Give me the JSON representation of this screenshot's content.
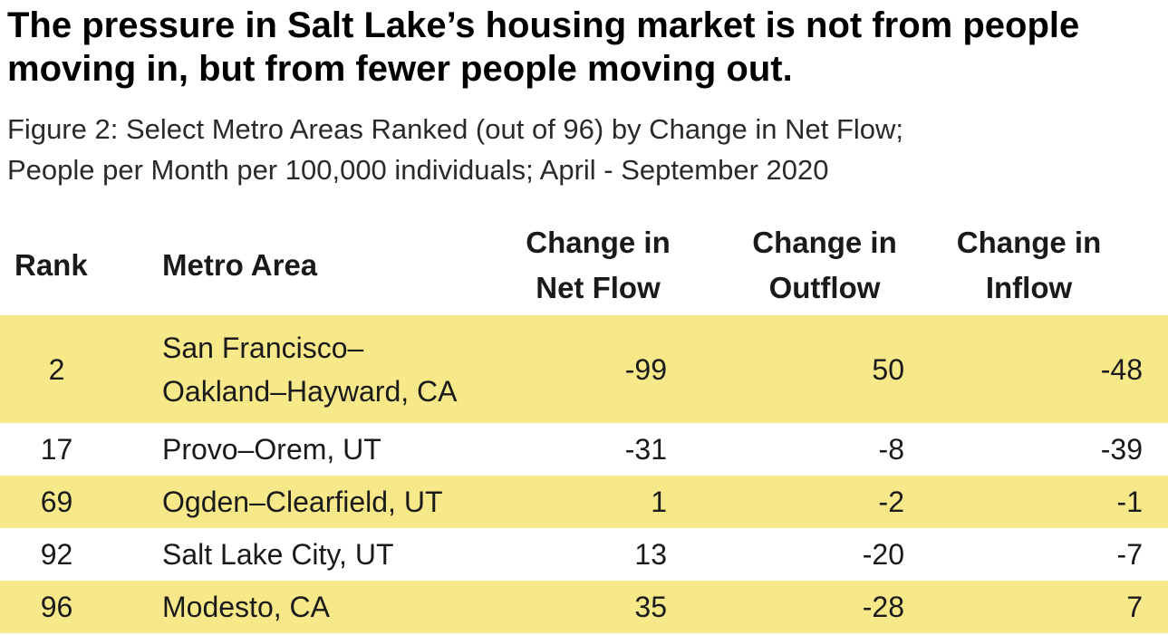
{
  "title": "The pressure in Salt Lake’s housing market is not from people moving in, but from fewer people moving out.",
  "subtitle_line1": "Figure 2: Select Metro Areas Ranked (out of 96) by Change in Net Flow;",
  "subtitle_line2": "People per Month per 100,000 individuals; April - September 2020",
  "colors": {
    "highlight_row": "#f7e98a",
    "text": "#1a1a1a"
  },
  "chart_data": {
    "type": "table",
    "columns": [
      {
        "line1": "Rank",
        "line2": ""
      },
      {
        "line1": "Metro Area",
        "line2": ""
      },
      {
        "line1": "Change in",
        "line2": "Net Flow"
      },
      {
        "line1": "Change in",
        "line2": "Outflow"
      },
      {
        "line1": "Change in",
        "line2": "Inflow"
      }
    ],
    "rows": [
      {
        "rank": "2",
        "metro_line1": "San Francisco–",
        "metro_line2": "Oakland–Hayward, CA",
        "net_flow": "-99",
        "outflow": "50",
        "inflow": "-48",
        "highlighted": true
      },
      {
        "rank": "17",
        "metro_line1": "Provo–Orem, UT",
        "metro_line2": "",
        "net_flow": "-31",
        "outflow": "-8",
        "inflow": "-39",
        "highlighted": false
      },
      {
        "rank": "69",
        "metro_line1": "Ogden–Clearfield, UT",
        "metro_line2": "",
        "net_flow": "1",
        "outflow": "-2",
        "inflow": "-1",
        "highlighted": true
      },
      {
        "rank": "92",
        "metro_line1": "Salt Lake City, UT",
        "metro_line2": "",
        "net_flow": "13",
        "outflow": "-20",
        "inflow": "-7",
        "highlighted": false
      },
      {
        "rank": "96",
        "metro_line1": "Modesto, CA",
        "metro_line2": "",
        "net_flow": "35",
        "outflow": "-28",
        "inflow": "7",
        "highlighted": true
      }
    ]
  }
}
